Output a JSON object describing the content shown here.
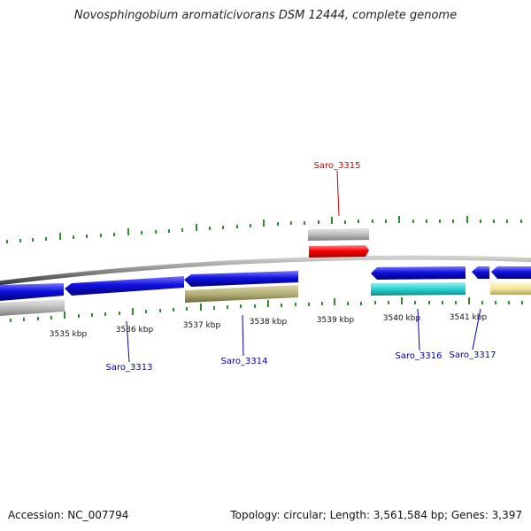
{
  "title": "Novosphingobium aromaticivorans DSM 12444, complete genome",
  "footer": {
    "accession": "Accession: NC_007794",
    "summary": "Topology: circular; Length: 3,561,584 bp; Genes: 3,397"
  },
  "colors": {
    "backbone": "#8a8a8a",
    "tick": "#2e8b2e",
    "label_blue": "#0000aa",
    "label_red": "#cc0000",
    "blue": "#1010e0",
    "red": "#ff0000",
    "grey": "#bcbcbc",
    "olive": "#b7b27a",
    "cyan": "#2ad4d4",
    "paleyellow": "#f2e8a0"
  },
  "ruler": {
    "unit": "kbp",
    "labels": [
      "3535 kbp",
      "3536 kbp",
      "3537 kbp",
      "3538 kbp",
      "3539 kbp",
      "3540 kbp",
      "3541 kbp"
    ]
  },
  "genes": [
    {
      "name": "Saro_3313",
      "label_color": "blue"
    },
    {
      "name": "Saro_3314",
      "label_color": "blue"
    },
    {
      "name": "Saro_3315",
      "label_color": "red"
    },
    {
      "name": "Saro_3316",
      "label_color": "blue"
    },
    {
      "name": "Saro_3317",
      "label_color": "blue"
    }
  ]
}
